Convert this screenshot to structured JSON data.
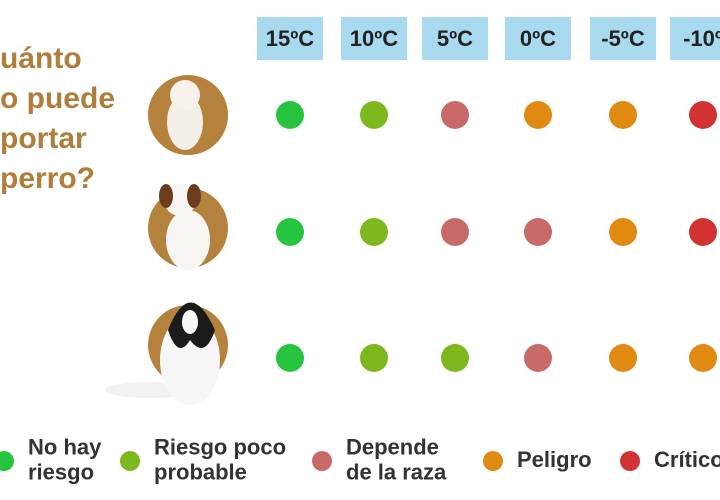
{
  "title_lines": [
    "uánto",
    "o puede",
    "portar",
    "perro?"
  ],
  "temperatures": [
    "15ºC",
    "10ºC",
    "5ºC",
    "0ºC",
    "-5ºC",
    "-10º"
  ],
  "legend": [
    {
      "lines": [
        "No hay",
        "riesgo"
      ],
      "color": "#27c43f"
    },
    {
      "lines": [
        "Riesgo poco",
        "probable"
      ],
      "color": "#7db81f"
    },
    {
      "lines": [
        "Depende",
        "de la raza"
      ],
      "color": "#c86a68"
    },
    {
      "lines": [
        "Peligro"
      ],
      "color": "#e08a12"
    },
    {
      "lines": [
        "Crítico"
      ],
      "color": "#d33232"
    }
  ],
  "rows": [
    [
      0,
      1,
      2,
      3,
      3,
      4
    ],
    [
      0,
      1,
      2,
      2,
      3,
      4
    ],
    [
      0,
      1,
      1,
      2,
      3,
      3
    ]
  ]
}
